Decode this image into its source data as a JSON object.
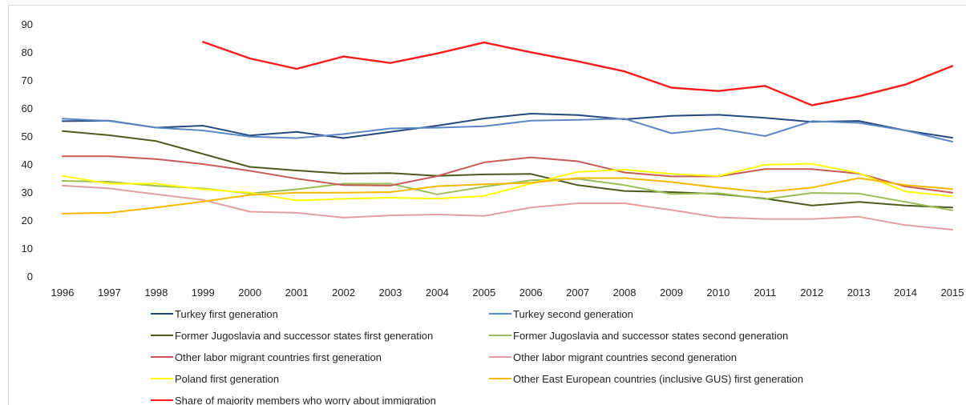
{
  "chart_data": {
    "type": "line",
    "title": "",
    "xlabel": "",
    "ylabel": "",
    "ylim": [
      0,
      90
    ],
    "yticks": [
      0,
      10,
      20,
      30,
      40,
      50,
      60,
      70,
      80,
      90
    ],
    "grid": false,
    "legend_position": "bottom",
    "categories": [
      "1996",
      "1997",
      "1998",
      "1999",
      "2000",
      "2001",
      "2002",
      "2003",
      "2004",
      "2005",
      "2006",
      "2007",
      "2008",
      "2009",
      "2010",
      "2011",
      "2012",
      "2013",
      "2014",
      "2015"
    ],
    "series": [
      {
        "name": "Turkey first generation",
        "color": "#24497f",
        "values": [
          55.3,
          55.5,
          53.0,
          53.7,
          50.2,
          51.5,
          49.3,
          51.5,
          53.7,
          56.3,
          58.0,
          57.5,
          56.0,
          57.2,
          57.6,
          56.5,
          55.1,
          55.4,
          52.0,
          49.4
        ]
      },
      {
        "name": "Turkey second generation",
        "color": "#5b87c5",
        "values": [
          56.2,
          55.4,
          53.0,
          52.0,
          49.8,
          49.3,
          50.7,
          52.7,
          53.0,
          53.5,
          55.5,
          55.8,
          56.2,
          51.0,
          52.7,
          50.0,
          55.3,
          54.7,
          52.0,
          48.0
        ]
      },
      {
        "name": "Former Jugoslavia and successor states first generation",
        "color": "#4b5a1d",
        "values": [
          51.8,
          50.3,
          48.2,
          43.6,
          39.0,
          37.7,
          36.6,
          36.8,
          35.8,
          36.3,
          36.5,
          32.5,
          30.4,
          30.0,
          29.3,
          27.7,
          25.2,
          26.5,
          25.2,
          24.5
        ]
      },
      {
        "name": "Former Jugoslavia and successor states second generation",
        "color": "#9cbd55",
        "values": [
          34.0,
          33.7,
          32.2,
          31.3,
          29.5,
          31.0,
          33.0,
          33.0,
          29.2,
          31.9,
          34.2,
          34.7,
          32.5,
          29.3,
          29.6,
          27.5,
          29.7,
          29.5,
          26.5,
          23.5
        ]
      },
      {
        "name": "Other labor migrant countries first generation",
        "color": "#c65b57",
        "values": [
          42.8,
          42.8,
          41.8,
          40.0,
          37.6,
          34.8,
          32.5,
          32.3,
          35.7,
          40.6,
          42.4,
          41.0,
          37.0,
          35.6,
          35.6,
          38.2,
          38.2,
          36.6,
          32.0,
          29.8
        ]
      },
      {
        "name": "Other labor migrant countries second generation",
        "color": "#e39da0",
        "values": [
          32.3,
          31.3,
          29.2,
          27.2,
          23.0,
          22.6,
          20.9,
          21.7,
          22.0,
          21.5,
          24.5,
          26.0,
          26.0,
          23.6,
          21.0,
          20.4,
          20.4,
          21.2,
          18.2,
          16.6
        ]
      },
      {
        "name": "Poland first generation",
        "color": "#ffff00",
        "values": [
          35.8,
          33.0,
          33.0,
          31.0,
          29.8,
          27.0,
          27.6,
          28.0,
          27.7,
          28.6,
          33.0,
          37.2,
          38.0,
          36.5,
          35.7,
          39.8,
          40.1,
          36.8,
          30.2,
          28.5
        ]
      },
      {
        "name": "Other East European countries (inclusive GUS) first generation",
        "color": "#f4b900",
        "values": [
          22.3,
          22.6,
          24.5,
          26.6,
          29.0,
          29.8,
          29.8,
          30.0,
          32.1,
          32.8,
          33.3,
          35.0,
          35.0,
          33.6,
          31.6,
          30.0,
          31.6,
          35.0,
          32.5,
          31.1
        ]
      },
      {
        "name": "Share of majority members who worry about immigration",
        "color": "#ff1a1a",
        "values": [
          null,
          null,
          null,
          83.6,
          77.7,
          74.0,
          78.4,
          76.1,
          79.5,
          83.4,
          79.9,
          76.7,
          73.1,
          67.3,
          66.1,
          67.9,
          61.0,
          64.2,
          68.4,
          75.0
        ]
      }
    ]
  }
}
